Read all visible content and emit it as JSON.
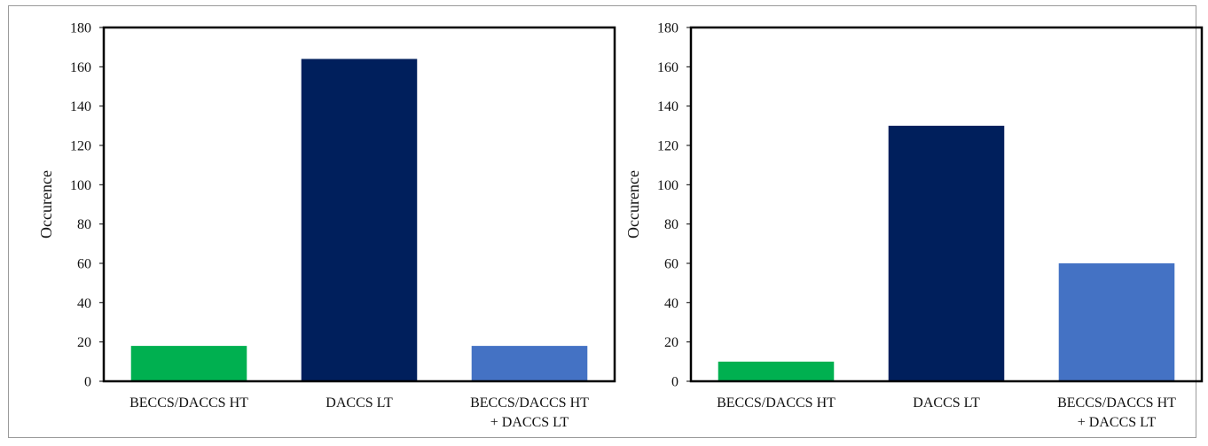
{
  "chart_data": [
    {
      "type": "bar",
      "ylabel": "Occurence",
      "xlabel": "",
      "ylim": [
        0,
        180
      ],
      "yticks": [
        0,
        20,
        40,
        60,
        80,
        100,
        120,
        140,
        160,
        180
      ],
      "categories": [
        [
          "BECCS/DACCS HT"
        ],
        [
          "DACCS LT"
        ],
        [
          "BECCS/DACCS HT",
          "+ DACCS LT"
        ]
      ],
      "values": [
        18,
        164,
        18
      ],
      "colors": [
        "#00b050",
        "#001f5c",
        "#4472c4"
      ],
      "grid": false,
      "legend": false
    },
    {
      "type": "bar",
      "ylabel": "Occurence",
      "xlabel": "",
      "ylim": [
        0,
        180
      ],
      "yticks": [
        0,
        20,
        40,
        60,
        80,
        100,
        120,
        140,
        160,
        180
      ],
      "categories": [
        [
          "BECCS/DACCS HT"
        ],
        [
          "DACCS LT"
        ],
        [
          "BECCS/DACCS HT",
          "+ DACCS LT"
        ]
      ],
      "values": [
        10,
        130,
        60
      ],
      "colors": [
        "#00b050",
        "#001f5c",
        "#4472c4"
      ],
      "grid": false,
      "legend": false
    }
  ]
}
